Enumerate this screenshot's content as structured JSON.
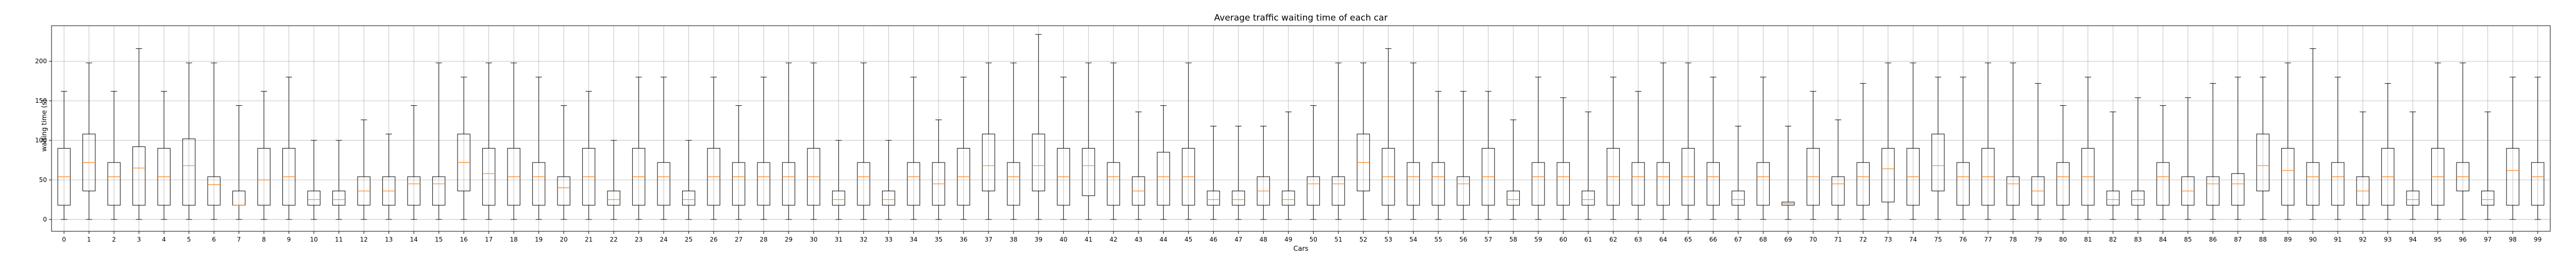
{
  "chart_data": {
    "type": "boxplot",
    "title": "Average traffic waiting time of each car",
    "xlabel": "Cars",
    "ylabel": "waiting time (s)",
    "ylim": [
      -15,
      245
    ],
    "yticks": [
      0,
      50,
      100,
      150,
      200
    ],
    "grid": true,
    "legend": "none",
    "colors": {
      "box": "#000000",
      "median": "#ff7f0e",
      "grid": "#b0b0b0"
    },
    "categories": [
      "0",
      "1",
      "2",
      "3",
      "4",
      "5",
      "6",
      "7",
      "8",
      "9",
      "10",
      "11",
      "12",
      "13",
      "14",
      "15",
      "16",
      "17",
      "18",
      "19",
      "20",
      "21",
      "22",
      "23",
      "24",
      "25",
      "26",
      "27",
      "28",
      "29",
      "30",
      "31",
      "32",
      "33",
      "34",
      "35",
      "36",
      "37",
      "38",
      "39",
      "40",
      "41",
      "42",
      "43",
      "44",
      "45",
      "46",
      "47",
      "48",
      "49",
      "50",
      "51",
      "52",
      "53",
      "54",
      "55",
      "56",
      "57",
      "58",
      "59",
      "60",
      "61",
      "62",
      "63",
      "64",
      "65",
      "66",
      "67",
      "68",
      "69",
      "70",
      "71",
      "72",
      "73",
      "74",
      "75",
      "76",
      "77",
      "78",
      "79",
      "80",
      "81",
      "82",
      "83",
      "84",
      "85",
      "86",
      "87",
      "88",
      "89",
      "90",
      "91",
      "92",
      "93",
      "94",
      "95",
      "96",
      "97",
      "98",
      "99"
    ],
    "boxes": [
      {
        "whislo": 0,
        "q1": 18,
        "med": 54,
        "q3": 90,
        "whishi": 162
      },
      {
        "whislo": 0,
        "q1": 36,
        "med": 72,
        "q3": 108,
        "whishi": 198
      },
      {
        "whislo": 0,
        "q1": 18,
        "med": 54,
        "q3": 72,
        "whishi": 162
      },
      {
        "whislo": 0,
        "q1": 18,
        "med": 65,
        "q3": 92,
        "whishi": 216
      },
      {
        "whislo": 0,
        "q1": 18,
        "med": 54,
        "q3": 90,
        "whishi": 162
      },
      {
        "whislo": 0,
        "q1": 18,
        "med": 68,
        "q3": 102,
        "whishi": 198
      },
      {
        "whislo": 0,
        "q1": 18,
        "med": 44,
        "q3": 54,
        "whishi": 198
      },
      {
        "whislo": 0,
        "q1": 18,
        "med": 18,
        "q3": 36,
        "whishi": 144
      },
      {
        "whislo": 0,
        "q1": 18,
        "med": 50,
        "q3": 90,
        "whishi": 162
      },
      {
        "whislo": 0,
        "q1": 18,
        "med": 54,
        "q3": 90,
        "whishi": 180
      },
      {
        "whislo": 0,
        "q1": 18,
        "med": 25,
        "q3": 36,
        "whishi": 100
      },
      {
        "whislo": 0,
        "q1": 18,
        "med": 25,
        "q3": 36,
        "whishi": 100
      },
      {
        "whislo": 0,
        "q1": 18,
        "med": 36,
        "q3": 54,
        "whishi": 126
      },
      {
        "whislo": 0,
        "q1": 18,
        "med": 36,
        "q3": 54,
        "whishi": 108
      },
      {
        "whislo": 0,
        "q1": 18,
        "med": 45,
        "q3": 54,
        "whishi": 144
      },
      {
        "whislo": 0,
        "q1": 18,
        "med": 45,
        "q3": 54,
        "whishi": 198
      },
      {
        "whislo": 0,
        "q1": 36,
        "med": 72,
        "q3": 108,
        "whishi": 180
      },
      {
        "whislo": 0,
        "q1": 18,
        "med": 58,
        "q3": 90,
        "whishi": 198
      },
      {
        "whislo": 0,
        "q1": 18,
        "med": 54,
        "q3": 90,
        "whishi": 198
      },
      {
        "whislo": 0,
        "q1": 18,
        "med": 54,
        "q3": 72,
        "whishi": 180
      },
      {
        "whislo": 0,
        "q1": 18,
        "med": 40,
        "q3": 54,
        "whishi": 144
      },
      {
        "whislo": 0,
        "q1": 18,
        "med": 54,
        "q3": 90,
        "whishi": 162
      },
      {
        "whislo": 0,
        "q1": 18,
        "med": 25,
        "q3": 36,
        "whishi": 100
      },
      {
        "whislo": 0,
        "q1": 18,
        "med": 54,
        "q3": 90,
        "whishi": 180
      },
      {
        "whislo": 0,
        "q1": 18,
        "med": 54,
        "q3": 72,
        "whishi": 180
      },
      {
        "whislo": 0,
        "q1": 18,
        "med": 25,
        "q3": 36,
        "whishi": 100
      },
      {
        "whislo": 0,
        "q1": 18,
        "med": 54,
        "q3": 90,
        "whishi": 180
      },
      {
        "whislo": 0,
        "q1": 18,
        "med": 54,
        "q3": 72,
        "whishi": 144
      },
      {
        "whislo": 0,
        "q1": 18,
        "med": 54,
        "q3": 72,
        "whishi": 180
      },
      {
        "whislo": 0,
        "q1": 18,
        "med": 54,
        "q3": 72,
        "whishi": 198
      },
      {
        "whislo": 0,
        "q1": 18,
        "med": 54,
        "q3": 90,
        "whishi": 198
      },
      {
        "whislo": 0,
        "q1": 18,
        "med": 25,
        "q3": 36,
        "whishi": 100
      },
      {
        "whislo": 0,
        "q1": 18,
        "med": 54,
        "q3": 72,
        "whishi": 198
      },
      {
        "whislo": 0,
        "q1": 18,
        "med": 25,
        "q3": 36,
        "whishi": 100
      },
      {
        "whislo": 0,
        "q1": 18,
        "med": 54,
        "q3": 72,
        "whishi": 180
      },
      {
        "whislo": 0,
        "q1": 18,
        "med": 45,
        "q3": 72,
        "whishi": 126
      },
      {
        "whislo": 0,
        "q1": 18,
        "med": 54,
        "q3": 90,
        "whishi": 180
      },
      {
        "whislo": 0,
        "q1": 36,
        "med": 68,
        "q3": 108,
        "whishi": 198
      },
      {
        "whislo": 0,
        "q1": 18,
        "med": 54,
        "q3": 72,
        "whishi": 198
      },
      {
        "whislo": 0,
        "q1": 36,
        "med": 68,
        "q3": 108,
        "whishi": 234
      },
      {
        "whislo": 0,
        "q1": 18,
        "med": 54,
        "q3": 90,
        "whishi": 180
      },
      {
        "whislo": 0,
        "q1": 30,
        "med": 68,
        "q3": 90,
        "whishi": 198
      },
      {
        "whislo": 0,
        "q1": 18,
        "med": 54,
        "q3": 72,
        "whishi": 198
      },
      {
        "whislo": 0,
        "q1": 18,
        "med": 36,
        "q3": 54,
        "whishi": 136
      },
      {
        "whislo": 0,
        "q1": 18,
        "med": 54,
        "q3": 85,
        "whishi": 144
      },
      {
        "whislo": 0,
        "q1": 18,
        "med": 54,
        "q3": 90,
        "whishi": 198
      },
      {
        "whislo": 0,
        "q1": 18,
        "med": 25,
        "q3": 36,
        "whishi": 118
      },
      {
        "whislo": 0,
        "q1": 18,
        "med": 25,
        "q3": 36,
        "whishi": 118
      },
      {
        "whislo": 0,
        "q1": 18,
        "med": 36,
        "q3": 54,
        "whishi": 118
      },
      {
        "whislo": 0,
        "q1": 18,
        "med": 25,
        "q3": 36,
        "whishi": 136
      },
      {
        "whislo": 0,
        "q1": 18,
        "med": 45,
        "q3": 54,
        "whishi": 144
      },
      {
        "whislo": 0,
        "q1": 18,
        "med": 45,
        "q3": 54,
        "whishi": 198
      },
      {
        "whislo": 0,
        "q1": 36,
        "med": 72,
        "q3": 108,
        "whishi": 198
      },
      {
        "whislo": 0,
        "q1": 18,
        "med": 54,
        "q3": 90,
        "whishi": 216
      },
      {
        "whislo": 0,
        "q1": 18,
        "med": 54,
        "q3": 72,
        "whishi": 198
      },
      {
        "whislo": 0,
        "q1": 18,
        "med": 54,
        "q3": 72,
        "whishi": 162
      },
      {
        "whislo": 0,
        "q1": 18,
        "med": 45,
        "q3": 54,
        "whishi": 162
      },
      {
        "whislo": 0,
        "q1": 18,
        "med": 54,
        "q3": 90,
        "whishi": 162
      },
      {
        "whislo": 0,
        "q1": 18,
        "med": 25,
        "q3": 36,
        "whishi": 126
      },
      {
        "whislo": 0,
        "q1": 18,
        "med": 54,
        "q3": 72,
        "whishi": 180
      },
      {
        "whislo": 0,
        "q1": 18,
        "med": 54,
        "q3": 72,
        "whishi": 154
      },
      {
        "whislo": 0,
        "q1": 18,
        "med": 25,
        "q3": 36,
        "whishi": 136
      },
      {
        "whislo": 0,
        "q1": 18,
        "med": 54,
        "q3": 90,
        "whishi": 180
      },
      {
        "whislo": 0,
        "q1": 18,
        "med": 54,
        "q3": 72,
        "whishi": 162
      },
      {
        "whislo": 0,
        "q1": 18,
        "med": 54,
        "q3": 72,
        "whishi": 198
      },
      {
        "whislo": 0,
        "q1": 18,
        "med": 54,
        "q3": 90,
        "whishi": 198
      },
      {
        "whislo": 0,
        "q1": 18,
        "med": 54,
        "q3": 72,
        "whishi": 180
      },
      {
        "whislo": 0,
        "q1": 18,
        "med": 25,
        "q3": 36,
        "whishi": 118
      },
      {
        "whislo": 0,
        "q1": 18,
        "med": 54,
        "q3": 72,
        "whishi": 180
      },
      {
        "whislo": 0,
        "q1": 18,
        "med": 20,
        "q3": 22,
        "whishi": 118
      },
      {
        "whislo": 0,
        "q1": 18,
        "med": 54,
        "q3": 90,
        "whishi": 162
      },
      {
        "whislo": 0,
        "q1": 18,
        "med": 45,
        "q3": 54,
        "whishi": 126
      },
      {
        "whislo": 0,
        "q1": 18,
        "med": 54,
        "q3": 72,
        "whishi": 172
      },
      {
        "whislo": 0,
        "q1": 22,
        "med": 64,
        "q3": 90,
        "whishi": 198
      },
      {
        "whislo": 0,
        "q1": 18,
        "med": 54,
        "q3": 90,
        "whishi": 198
      },
      {
        "whislo": 0,
        "q1": 36,
        "med": 68,
        "q3": 108,
        "whishi": 180
      },
      {
        "whislo": 0,
        "q1": 18,
        "med": 54,
        "q3": 72,
        "whishi": 180
      },
      {
        "whislo": 0,
        "q1": 18,
        "med": 54,
        "q3": 90,
        "whishi": 198
      },
      {
        "whislo": 0,
        "q1": 18,
        "med": 45,
        "q3": 54,
        "whishi": 198
      },
      {
        "whislo": 0,
        "q1": 18,
        "med": 36,
        "q3": 54,
        "whishi": 172
      },
      {
        "whislo": 0,
        "q1": 18,
        "med": 54,
        "q3": 72,
        "whishi": 144
      },
      {
        "whislo": 0,
        "q1": 18,
        "med": 54,
        "q3": 90,
        "whishi": 180
      },
      {
        "whislo": 0,
        "q1": 18,
        "med": 25,
        "q3": 36,
        "whishi": 136
      },
      {
        "whislo": 0,
        "q1": 18,
        "med": 25,
        "q3": 36,
        "whishi": 154
      },
      {
        "whislo": 0,
        "q1": 18,
        "med": 54,
        "q3": 72,
        "whishi": 144
      },
      {
        "whislo": 0,
        "q1": 18,
        "med": 36,
        "q3": 54,
        "whishi": 154
      },
      {
        "whislo": 0,
        "q1": 18,
        "med": 45,
        "q3": 54,
        "whishi": 172
      },
      {
        "whislo": 0,
        "q1": 18,
        "med": 45,
        "q3": 58,
        "whishi": 180
      },
      {
        "whislo": 0,
        "q1": 36,
        "med": 68,
        "q3": 108,
        "whishi": 180
      },
      {
        "whislo": 0,
        "q1": 18,
        "med": 62,
        "q3": 90,
        "whishi": 198
      },
      {
        "whislo": 0,
        "q1": 18,
        "med": 54,
        "q3": 72,
        "whishi": 216
      },
      {
        "whislo": 0,
        "q1": 18,
        "med": 54,
        "q3": 72,
        "whishi": 180
      },
      {
        "whislo": 0,
        "q1": 18,
        "med": 36,
        "q3": 54,
        "whishi": 136
      },
      {
        "whislo": 0,
        "q1": 18,
        "med": 54,
        "q3": 90,
        "whishi": 172
      },
      {
        "whislo": 0,
        "q1": 18,
        "med": 25,
        "q3": 36,
        "whishi": 136
      },
      {
        "whislo": 0,
        "q1": 18,
        "med": 54,
        "q3": 90,
        "whishi": 198
      },
      {
        "whislo": 0,
        "q1": 36,
        "med": 54,
        "q3": 72,
        "whishi": 198
      },
      {
        "whislo": 0,
        "q1": 18,
        "med": 25,
        "q3": 36,
        "whishi": 136
      },
      {
        "whislo": 0,
        "q1": 18,
        "med": 62,
        "q3": 90,
        "whishi": 180
      },
      {
        "whislo": 0,
        "q1": 18,
        "med": 54,
        "q3": 72,
        "whishi": 180
      }
    ]
  }
}
